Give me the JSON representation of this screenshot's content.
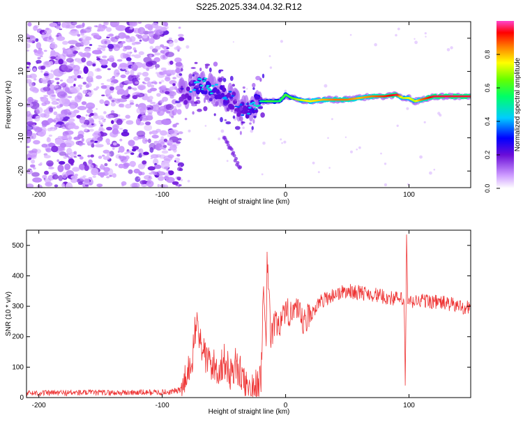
{
  "title": "S225.2025.334.04.32.R12",
  "colors": {
    "snr_line": "#ee3333",
    "axis": "#000000",
    "noise_light": "#d9b3ff",
    "noise_dark": "#6b10d8"
  },
  "chart_data": [
    {
      "type": "heatmap",
      "name": "spectrogram",
      "xlabel": "Height of straight line (km)",
      "ylabel": "Frequency (Hz)",
      "xlim": [
        -210,
        150
      ],
      "ylim": [
        -25,
        25
      ],
      "xticks": [
        -200,
        -100,
        0,
        100
      ],
      "yticks": [
        -20,
        -10,
        0,
        10,
        20
      ],
      "colorbar": {
        "label": "Normalized spectral amplitude",
        "range": [
          0.0,
          1.0
        ],
        "ticks": [
          0.0,
          0.2,
          0.4,
          0.6,
          0.8
        ],
        "tick_labels": [
          "0.0",
          "0.2",
          "0.4",
          "0.6",
          "0.8"
        ]
      },
      "noise_region_x": [
        -210,
        -88
      ],
      "track": [
        {
          "x": -85,
          "f": 4,
          "a": 0.3
        },
        {
          "x": -80,
          "f": 3,
          "a": 0.35
        },
        {
          "x": -75,
          "f": 5,
          "a": 0.4
        },
        {
          "x": -70,
          "f": 6,
          "a": 0.45
        },
        {
          "x": -65,
          "f": 6,
          "a": 0.45
        },
        {
          "x": -60,
          "f": 5,
          "a": 0.45
        },
        {
          "x": -55,
          "f": 4,
          "a": 0.4
        },
        {
          "x": -50,
          "f": 3,
          "a": 0.4
        },
        {
          "x": -45,
          "f": 2,
          "a": 0.35
        },
        {
          "x": -40,
          "f": 0,
          "a": 0.35
        },
        {
          "x": -35,
          "f": -2,
          "a": 0.35
        },
        {
          "x": -30,
          "f": -1,
          "a": 0.4
        },
        {
          "x": -25,
          "f": 0,
          "a": 0.45
        },
        {
          "x": -20,
          "f": 1,
          "a": 0.5
        },
        {
          "x": -15,
          "f": 1,
          "a": 0.6
        },
        {
          "x": -10,
          "f": 1,
          "a": 0.6
        },
        {
          "x": -5,
          "f": 1,
          "a": 0.55
        },
        {
          "x": 0,
          "f": 3,
          "a": 0.6
        },
        {
          "x": 5,
          "f": 2,
          "a": 0.6
        },
        {
          "x": 10,
          "f": 1.5,
          "a": 0.7
        },
        {
          "x": 20,
          "f": 1,
          "a": 0.75
        },
        {
          "x": 30,
          "f": 1.5,
          "a": 0.8
        },
        {
          "x": 40,
          "f": 1.5,
          "a": 0.85
        },
        {
          "x": 50,
          "f": 1.5,
          "a": 0.85
        },
        {
          "x": 60,
          "f": 2,
          "a": 0.8
        },
        {
          "x": 70,
          "f": 2.5,
          "a": 0.85
        },
        {
          "x": 80,
          "f": 2.5,
          "a": 0.9
        },
        {
          "x": 90,
          "f": 3,
          "a": 0.95
        },
        {
          "x": 95,
          "f": 2,
          "a": 0.7
        },
        {
          "x": 100,
          "f": 2,
          "a": 0.75
        },
        {
          "x": 105,
          "f": 1,
          "a": 0.7
        },
        {
          "x": 110,
          "f": 1.5,
          "a": 0.85
        },
        {
          "x": 115,
          "f": 2,
          "a": 0.9
        },
        {
          "x": 120,
          "f": 2.5,
          "a": 0.95
        },
        {
          "x": 130,
          "f": 2.5,
          "a": 0.95
        },
        {
          "x": 140,
          "f": 2.5,
          "a": 0.95
        },
        {
          "x": 150,
          "f": 2.5,
          "a": 0.95
        }
      ],
      "secondary_track": [
        {
          "x": -50,
          "f": -10,
          "a": 0.3
        },
        {
          "x": -45,
          "f": -13,
          "a": 0.3
        },
        {
          "x": -40,
          "f": -17,
          "a": 0.3
        },
        {
          "x": -36,
          "f": -20,
          "a": 0.3
        }
      ]
    },
    {
      "type": "line",
      "name": "snr",
      "xlabel": "Height of straight line (km)",
      "ylabel": "SNR (10 * v/v)",
      "xlim": [
        -210,
        150
      ],
      "ylim": [
        0,
        550
      ],
      "xticks": [
        -200,
        -100,
        0,
        100
      ],
      "yticks": [
        0,
        100,
        200,
        300,
        400,
        500
      ],
      "series": [
        {
          "name": "SNR",
          "x": [
            -210,
            -190,
            -170,
            -150,
            -130,
            -110,
            -95,
            -85,
            -80,
            -75,
            -72,
            -70,
            -65,
            -60,
            -55,
            -50,
            -45,
            -40,
            -35,
            -30,
            -25,
            -20,
            -18,
            -16,
            -15,
            -12,
            -10,
            -5,
            0,
            5,
            10,
            15,
            20,
            25,
            30,
            40,
            50,
            60,
            70,
            80,
            90,
            96,
            97,
            98,
            99,
            100,
            110,
            120,
            130,
            140,
            150
          ],
          "y": [
            15,
            15,
            16,
            16,
            16,
            17,
            18,
            25,
            60,
            150,
            260,
            200,
            130,
            110,
            90,
            120,
            80,
            110,
            60,
            40,
            30,
            70,
            330,
            150,
            440,
            200,
            230,
            250,
            260,
            300,
            270,
            240,
            270,
            300,
            320,
            340,
            350,
            345,
            340,
            330,
            325,
            320,
            30,
            520,
            320,
            310,
            320,
            315,
            310,
            300,
            295
          ]
        }
      ]
    }
  ]
}
